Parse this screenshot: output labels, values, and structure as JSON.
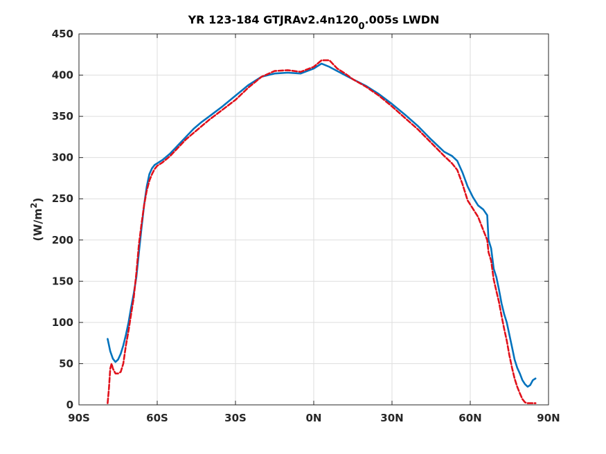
{
  "chart_data": {
    "type": "line",
    "title_parts": {
      "main": "YR 123-184 GTJRAv2.4n120",
      "sub": "0",
      "tail": ".005s LWDN"
    },
    "ylabel_parts": {
      "main": "(W/m",
      "sup": "2",
      "tail": ")"
    },
    "xlabel": "",
    "xlim": [
      -90,
      90
    ],
    "ylim": [
      0,
      450
    ],
    "grid": true,
    "x_ticks": [
      -90,
      -60,
      -30,
      0,
      30,
      60,
      90
    ],
    "x_tick_labels": [
      "90S",
      "60S",
      "30S",
      "0N",
      "30N",
      "60N",
      "90N"
    ],
    "y_ticks": [
      0,
      50,
      100,
      150,
      200,
      250,
      300,
      350,
      400,
      450
    ],
    "y_tick_labels": [
      "0",
      "50",
      "100",
      "150",
      "200",
      "250",
      "300",
      "350",
      "400",
      "450"
    ],
    "series": [
      {
        "color": "#0072BD",
        "style": "solid",
        "x": [
          -79,
          -78,
          -77,
          -76,
          -75,
          -74,
          -73,
          -72,
          -71,
          -70,
          -69,
          -68,
          -67,
          -66,
          -65,
          -64,
          -63,
          -62,
          -61,
          -60,
          -58,
          -55,
          -52,
          -49,
          -46,
          -43,
          -40,
          -35,
          -30,
          -25,
          -20,
          -15,
          -10,
          -5,
          0,
          3,
          6,
          9,
          12,
          15,
          20,
          25,
          30,
          35,
          40,
          45,
          50,
          53,
          55,
          57,
          59,
          61,
          63,
          65,
          66.5,
          67,
          68,
          69,
          70,
          71,
          72,
          73,
          74,
          75,
          76,
          77,
          78,
          79,
          80,
          81,
          82,
          83,
          84,
          85
        ],
        "y": [
          80,
          65,
          56,
          52,
          55,
          62,
          72,
          85,
          100,
          118,
          135,
          155,
          185,
          215,
          243,
          265,
          280,
          287,
          291,
          293,
          297,
          305,
          315,
          325,
          335,
          343,
          350,
          362,
          375,
          388,
          398,
          402,
          403,
          402,
          408,
          414,
          410,
          405,
          400,
          395,
          387,
          377,
          365,
          352,
          338,
          322,
          307,
          302,
          296,
          282,
          265,
          252,
          242,
          237,
          230,
          200,
          190,
          165,
          155,
          140,
          123,
          110,
          100,
          85,
          70,
          55,
          45,
          38,
          30,
          25,
          22,
          24,
          30,
          32
        ]
      },
      {
        "color": "#E0101A",
        "style": "dashed",
        "x": [
          -79,
          -78.5,
          -78,
          -77.5,
          -77,
          -76,
          -75,
          -74,
          -73,
          -72,
          -71,
          -70,
          -69,
          -68,
          -67,
          -66,
          -65,
          -64,
          -63,
          -62,
          -61,
          -60,
          -58,
          -55,
          -52,
          -49,
          -46,
          -43,
          -40,
          -35,
          -30,
          -25,
          -20,
          -15,
          -10,
          -5,
          0,
          3,
          6,
          9,
          12,
          15,
          20,
          25,
          30,
          35,
          40,
          45,
          50,
          53,
          55,
          57,
          59,
          61,
          63,
          65,
          66.5,
          67,
          68,
          69,
          70,
          71,
          72,
          73,
          74,
          75,
          76,
          77,
          78,
          79,
          80,
          81,
          82,
          83,
          84,
          85
        ],
        "y": [
          2,
          20,
          44,
          50,
          44,
          38,
          38,
          40,
          50,
          72,
          90,
          110,
          130,
          160,
          195,
          220,
          243,
          260,
          272,
          280,
          286,
          290,
          294,
          302,
          312,
          322,
          330,
          338,
          346,
          358,
          370,
          385,
          398,
          405,
          406,
          404,
          410,
          418,
          418,
          408,
          402,
          395,
          386,
          375,
          362,
          348,
          334,
          318,
          302,
          293,
          285,
          268,
          248,
          238,
          228,
          212,
          200,
          185,
          175,
          152,
          138,
          125,
          108,
          92,
          78,
          60,
          45,
          32,
          22,
          14,
          7,
          3,
          2,
          2,
          2,
          2
        ]
      }
    ]
  }
}
